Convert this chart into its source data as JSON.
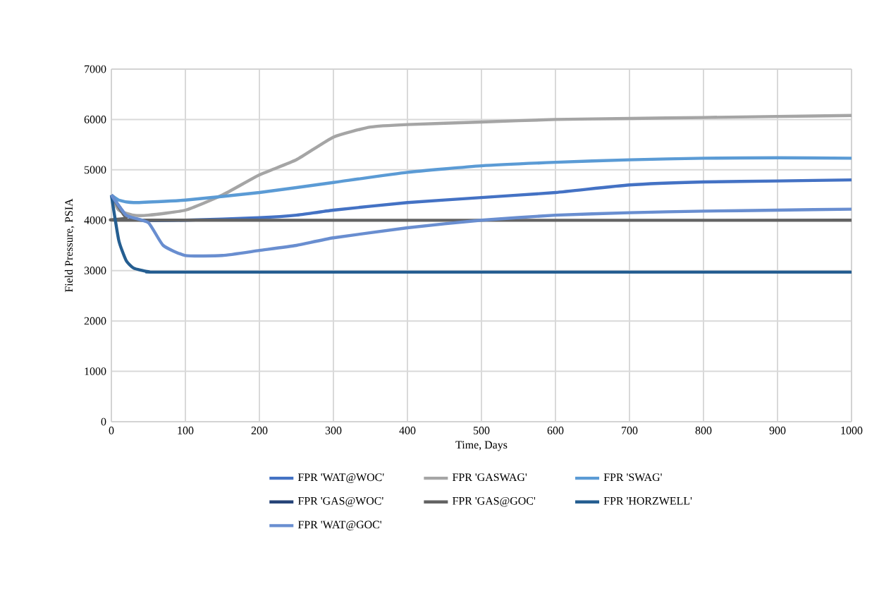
{
  "chart_data": {
    "type": "line",
    "xlabel": "Time, Days",
    "ylabel": "Field Pressure, PSIA",
    "xlim": [
      0,
      1000
    ],
    "ylim": [
      0,
      7000
    ],
    "xticks": [
      0,
      100,
      200,
      300,
      400,
      500,
      600,
      700,
      800,
      900,
      1000
    ],
    "yticks": [
      0,
      1000,
      2000,
      3000,
      4000,
      5000,
      6000,
      7000
    ],
    "grid": true,
    "legend": "bottom",
    "marker": "none",
    "line_style": "solid",
    "series": [
      {
        "name": "FPR 'WAT@WOC'",
        "color": "#4472c4",
        "x": [
          0,
          20,
          40,
          100,
          200,
          250,
          300,
          400,
          500,
          600,
          700,
          800,
          900,
          1000
        ],
        "values": [
          4500,
          4100,
          4000,
          4000,
          4050,
          4100,
          4200,
          4350,
          4450,
          4550,
          4700,
          4760,
          4780,
          4800
        ]
      },
      {
        "name": "FPR 'GASWAG'",
        "color": "#a5a5a5",
        "x": [
          0,
          10,
          30,
          50,
          100,
          150,
          200,
          250,
          300,
          350,
          400,
          500,
          600,
          700,
          800,
          900,
          1000
        ],
        "values": [
          4500,
          4200,
          4100,
          4100,
          4200,
          4500,
          4900,
          5200,
          5650,
          5850,
          5900,
          5950,
          6000,
          6020,
          6040,
          6060,
          6080
        ]
      },
      {
        "name": "FPR 'SWAG'",
        "color": "#5b9bd5",
        "x": [
          0,
          10,
          30,
          100,
          200,
          300,
          400,
          500,
          600,
          700,
          800,
          900,
          1000
        ],
        "values": [
          4500,
          4400,
          4350,
          4400,
          4550,
          4750,
          4950,
          5080,
          5150,
          5200,
          5230,
          5240,
          5230
        ]
      },
      {
        "name": "FPR 'GAS@WOC'",
        "color": "#264478",
        "values": [
          null
        ]
      },
      {
        "name": "FPR 'GAS@GOC'",
        "color": "#636363",
        "x": [
          0,
          20,
          40,
          1000
        ],
        "values": [
          4500,
          4050,
          4000,
          4000
        ]
      },
      {
        "name": "FPR 'HORZWELL'",
        "color": "#255e91",
        "x": [
          0,
          10,
          20,
          30,
          50,
          100,
          1000
        ],
        "values": [
          4500,
          3600,
          3200,
          3050,
          2980,
          2970,
          2970
        ]
      },
      {
        "name": "FPR 'WAT@GOC'",
        "color": "#698ed0",
        "x": [
          0,
          20,
          50,
          70,
          100,
          150,
          200,
          250,
          300,
          400,
          500,
          600,
          700,
          800,
          900,
          1000
        ],
        "values": [
          4500,
          4100,
          3950,
          3500,
          3300,
          3300,
          3400,
          3500,
          3650,
          3850,
          4000,
          4100,
          4150,
          4180,
          4200,
          4220
        ]
      }
    ]
  }
}
